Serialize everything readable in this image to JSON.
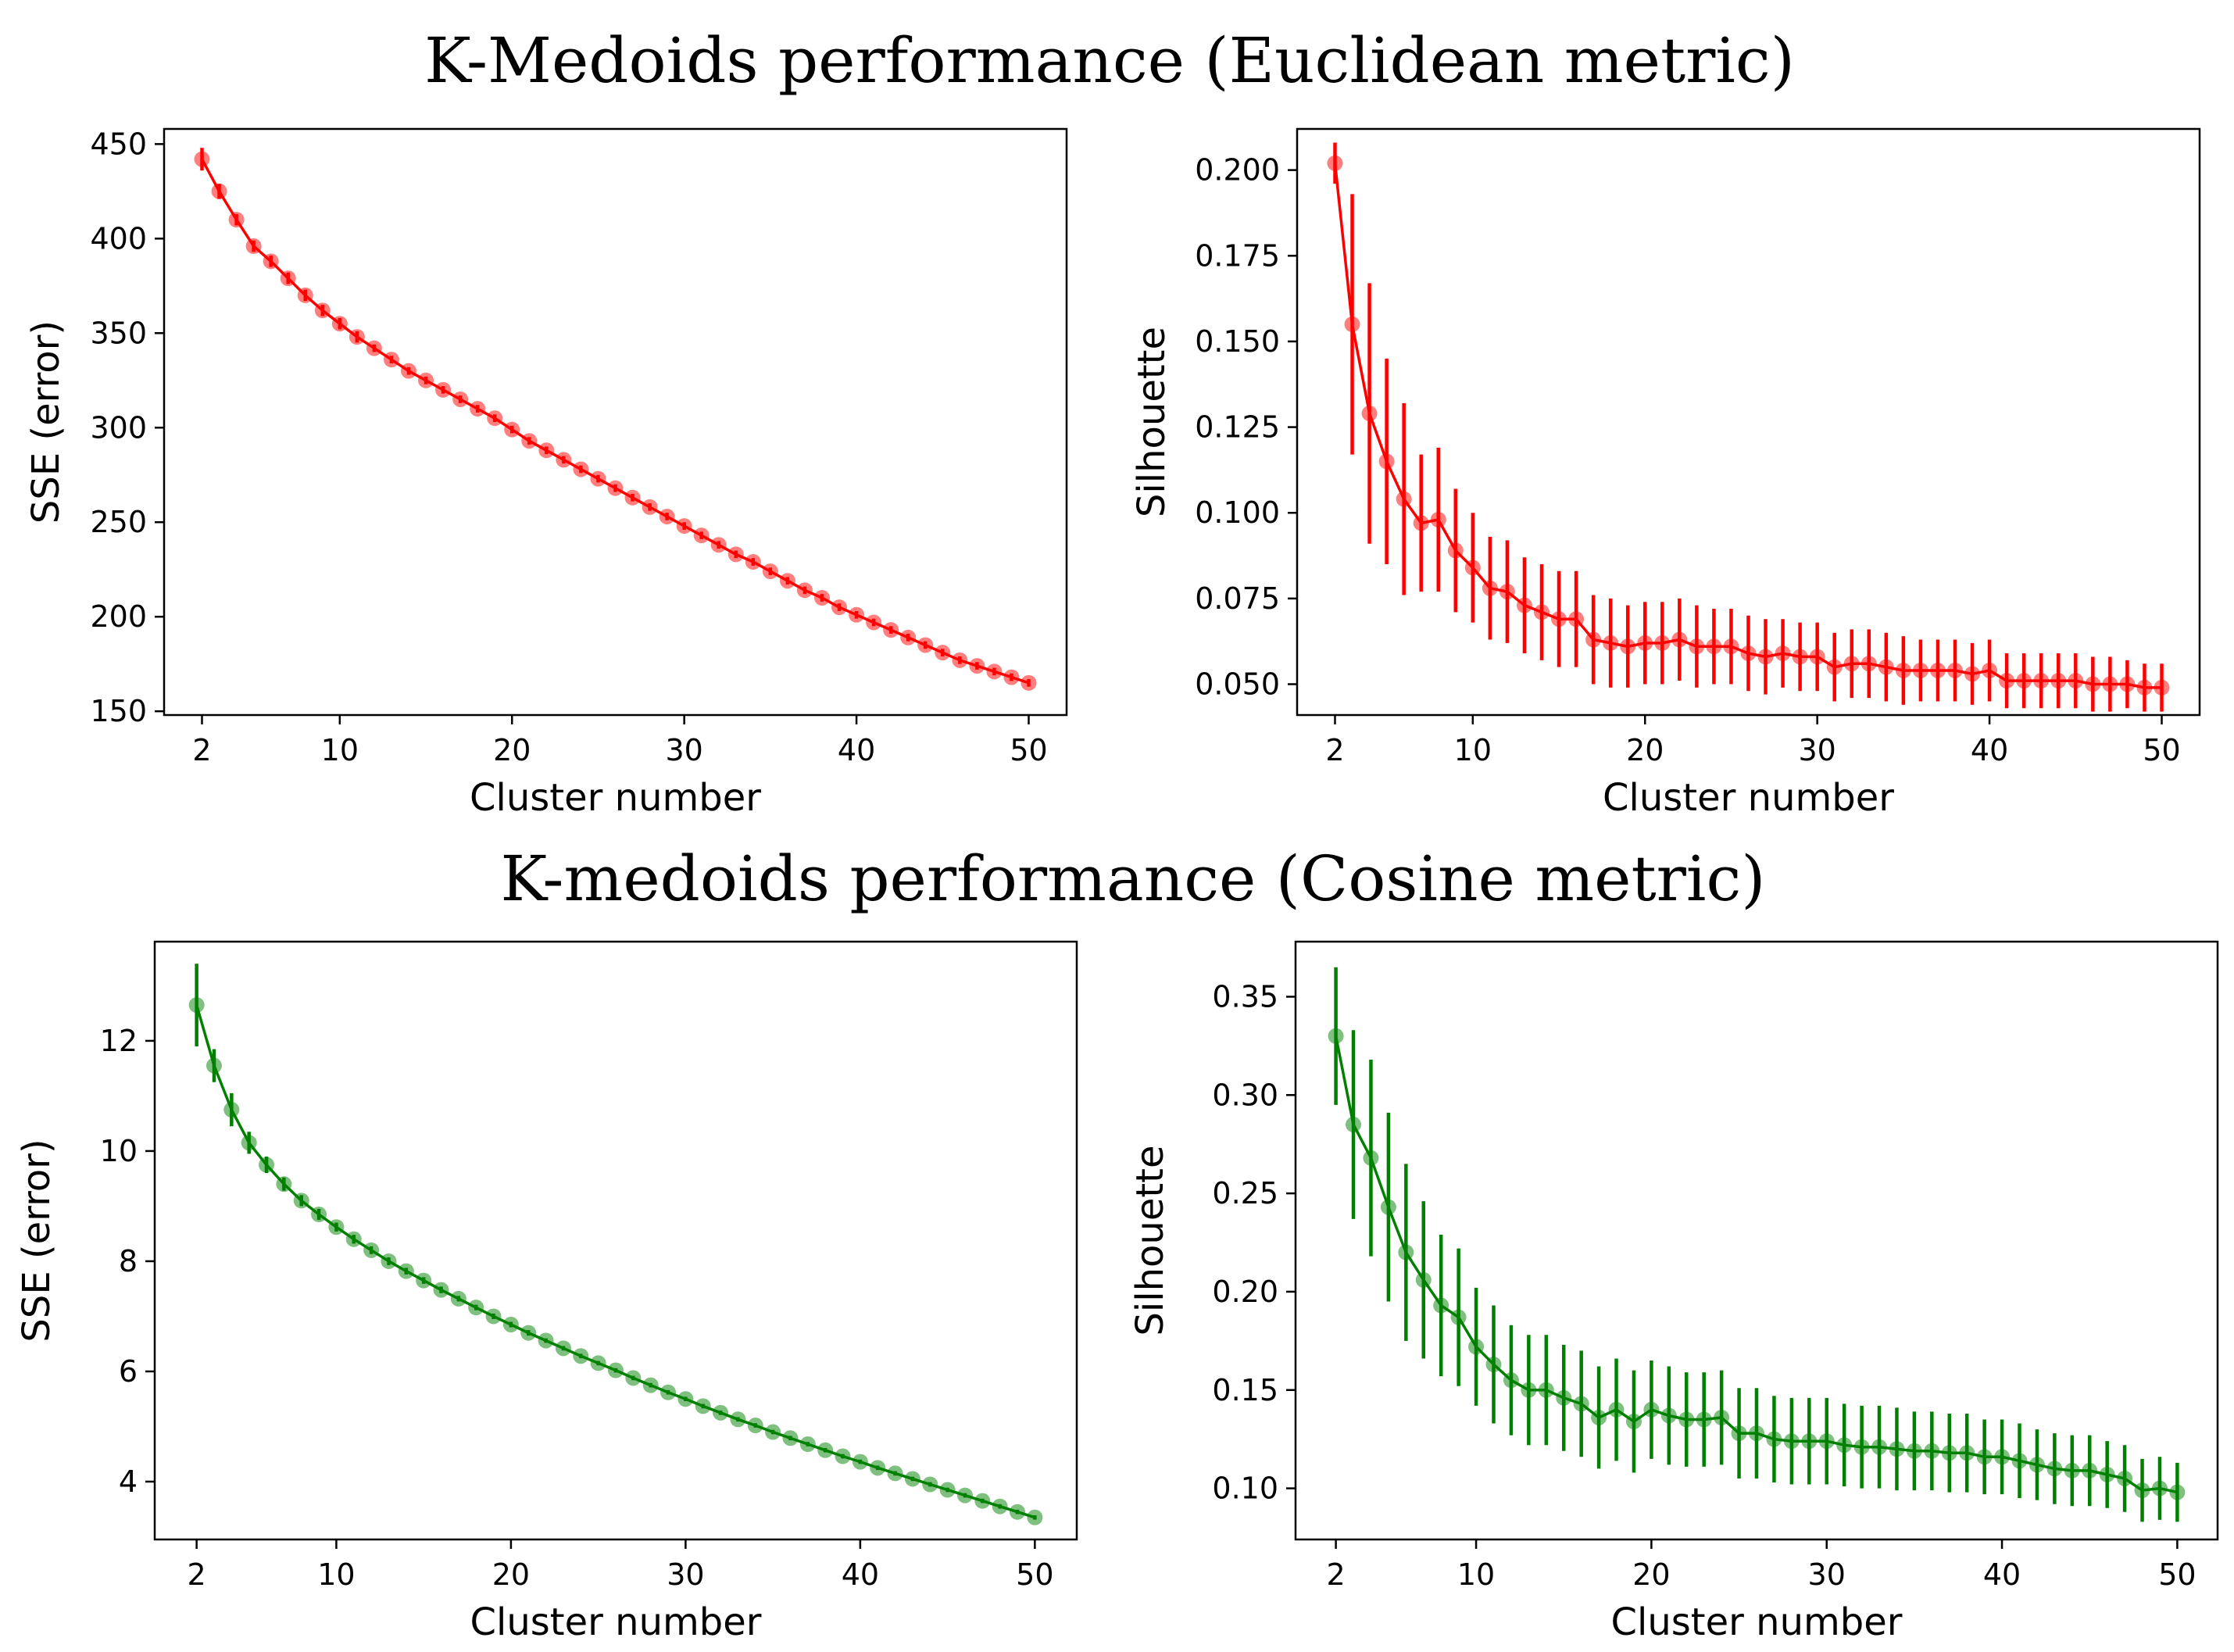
{
  "titles": {
    "euclidean": "K-Medoids performance (Euclidean metric)",
    "cosine": "K-medoids performance (Cosine metric)"
  },
  "chart_data": [
    {
      "id": "euc-sse",
      "type": "line",
      "title": "",
      "xlabel": "Cluster number",
      "ylabel": "SSE (error)",
      "xlim": [
        -0.2,
        52.2
      ],
      "ylim": [
        148,
        458
      ],
      "xticks": [
        2,
        10,
        20,
        30,
        40,
        50
      ],
      "yticks": [
        150,
        200,
        250,
        300,
        350,
        400,
        450
      ],
      "ytick_decimals": 0,
      "color": "#ff0000",
      "x": [
        2,
        3,
        4,
        5,
        6,
        7,
        8,
        9,
        10,
        11,
        12,
        13,
        14,
        15,
        16,
        17,
        18,
        19,
        20,
        21,
        22,
        23,
        24,
        25,
        26,
        27,
        28,
        29,
        30,
        31,
        32,
        33,
        34,
        35,
        36,
        37,
        38,
        39,
        40,
        41,
        42,
        43,
        44,
        45,
        46,
        47,
        48,
        49,
        50
      ],
      "y": [
        442,
        425,
        410,
        396,
        388,
        379,
        370,
        362,
        355,
        348,
        342,
        336,
        330,
        325,
        320,
        315,
        310,
        305,
        299,
        293,
        288,
        283,
        278,
        273,
        268,
        263,
        258,
        253,
        248,
        243,
        238,
        233,
        229,
        224,
        219,
        214,
        210,
        205,
        201,
        197,
        193,
        189,
        185,
        181,
        177,
        174,
        171,
        168,
        165
      ],
      "err": [
        6,
        4,
        3,
        3,
        3,
        3,
        3,
        3,
        3,
        3,
        2,
        2,
        2,
        2,
        2,
        2,
        2,
        2,
        2,
        2,
        2,
        2,
        2,
        2,
        2,
        2,
        2,
        2,
        2,
        2,
        2,
        2,
        2,
        2,
        2,
        2,
        2,
        2,
        2,
        2,
        2,
        2,
        2,
        2,
        2,
        2,
        2,
        2,
        2
      ]
    },
    {
      "id": "euc-sil",
      "type": "line",
      "title": "",
      "xlabel": "Cluster number",
      "ylabel": "Silhouette",
      "xlim": [
        -0.2,
        52.2
      ],
      "ylim": [
        0.041,
        0.212
      ],
      "xticks": [
        2,
        10,
        20,
        30,
        40,
        50
      ],
      "yticks": [
        0.05,
        0.075,
        0.1,
        0.125,
        0.15,
        0.175,
        0.2
      ],
      "ytick_decimals": 3,
      "color": "#ff0000",
      "x": [
        2,
        3,
        4,
        5,
        6,
        7,
        8,
        9,
        10,
        11,
        12,
        13,
        14,
        15,
        16,
        17,
        18,
        19,
        20,
        21,
        22,
        23,
        24,
        25,
        26,
        27,
        28,
        29,
        30,
        31,
        32,
        33,
        34,
        35,
        36,
        37,
        38,
        39,
        40,
        41,
        42,
        43,
        44,
        45,
        46,
        47,
        48,
        49,
        50
      ],
      "y": [
        0.202,
        0.155,
        0.129,
        0.115,
        0.104,
        0.097,
        0.098,
        0.089,
        0.084,
        0.078,
        0.077,
        0.073,
        0.071,
        0.069,
        0.069,
        0.063,
        0.062,
        0.061,
        0.062,
        0.062,
        0.063,
        0.061,
        0.061,
        0.061,
        0.059,
        0.058,
        0.059,
        0.058,
        0.058,
        0.055,
        0.056,
        0.056,
        0.055,
        0.054,
        0.054,
        0.054,
        0.054,
        0.053,
        0.054,
        0.051,
        0.051,
        0.051,
        0.051,
        0.051,
        0.05,
        0.05,
        0.05,
        0.049,
        0.049
      ],
      "err": [
        0.006,
        0.038,
        0.038,
        0.03,
        0.028,
        0.02,
        0.021,
        0.018,
        0.016,
        0.015,
        0.015,
        0.014,
        0.014,
        0.014,
        0.014,
        0.013,
        0.013,
        0.012,
        0.012,
        0.012,
        0.012,
        0.012,
        0.011,
        0.011,
        0.011,
        0.011,
        0.01,
        0.01,
        0.01,
        0.01,
        0.01,
        0.01,
        0.01,
        0.01,
        0.009,
        0.009,
        0.009,
        0.009,
        0.009,
        0.008,
        0.008,
        0.008,
        0.008,
        0.008,
        0.008,
        0.008,
        0.007,
        0.007,
        0.007
      ]
    },
    {
      "id": "cos-sse",
      "type": "line",
      "title": "",
      "xlabel": "Cluster number",
      "ylabel": "SSE (error)",
      "xlim": [
        -0.4,
        52.4
      ],
      "ylim": [
        2.95,
        13.8
      ],
      "xticks": [
        2,
        10,
        20,
        30,
        40,
        50
      ],
      "yticks": [
        4,
        6,
        8,
        10,
        12
      ],
      "ytick_decimals": 0,
      "color": "#008000",
      "x": [
        2,
        3,
        4,
        5,
        6,
        7,
        8,
        9,
        10,
        11,
        12,
        13,
        14,
        15,
        16,
        17,
        18,
        19,
        20,
        21,
        22,
        23,
        24,
        25,
        26,
        27,
        28,
        29,
        30,
        31,
        32,
        33,
        34,
        35,
        36,
        37,
        38,
        39,
        40,
        41,
        42,
        43,
        44,
        45,
        46,
        47,
        48,
        49,
        50
      ],
      "y": [
        12.65,
        11.55,
        10.75,
        10.15,
        9.75,
        9.4,
        9.1,
        8.85,
        8.62,
        8.4,
        8.2,
        8.0,
        7.82,
        7.65,
        7.48,
        7.32,
        7.16,
        7.0,
        6.85,
        6.7,
        6.56,
        6.42,
        6.28,
        6.15,
        6.02,
        5.88,
        5.75,
        5.62,
        5.5,
        5.37,
        5.25,
        5.13,
        5.02,
        4.9,
        4.79,
        4.68,
        4.57,
        4.46,
        4.36,
        4.25,
        4.15,
        4.05,
        3.95,
        3.85,
        3.75,
        3.65,
        3.55,
        3.45,
        3.35
      ],
      "err": [
        0.75,
        0.3,
        0.3,
        0.2,
        0.15,
        0.12,
        0.1,
        0.1,
        0.08,
        0.08,
        0.07,
        0.07,
        0.06,
        0.06,
        0.06,
        0.05,
        0.05,
        0.05,
        0.05,
        0.05,
        0.04,
        0.04,
        0.04,
        0.04,
        0.04,
        0.04,
        0.04,
        0.04,
        0.04,
        0.04,
        0.04,
        0.04,
        0.04,
        0.04,
        0.04,
        0.04,
        0.04,
        0.04,
        0.04,
        0.04,
        0.04,
        0.04,
        0.04,
        0.04,
        0.04,
        0.04,
        0.04,
        0.04,
        0.04
      ]
    },
    {
      "id": "cos-sil",
      "type": "line",
      "title": "",
      "xlabel": "Cluster number",
      "ylabel": "Silhouette",
      "xlim": [
        -0.3,
        52.3
      ],
      "ylim": [
        0.074,
        0.378
      ],
      "xticks": [
        2,
        10,
        20,
        30,
        40,
        50
      ],
      "yticks": [
        0.1,
        0.15,
        0.2,
        0.25,
        0.3,
        0.35
      ],
      "ytick_decimals": 2,
      "color": "#008000",
      "x": [
        2,
        3,
        4,
        5,
        6,
        7,
        8,
        9,
        10,
        11,
        12,
        13,
        14,
        15,
        16,
        17,
        18,
        19,
        20,
        21,
        22,
        23,
        24,
        25,
        26,
        27,
        28,
        29,
        30,
        31,
        32,
        33,
        34,
        35,
        36,
        37,
        38,
        39,
        40,
        41,
        42,
        43,
        44,
        45,
        46,
        47,
        48,
        49,
        50
      ],
      "y": [
        0.33,
        0.285,
        0.268,
        0.243,
        0.22,
        0.206,
        0.193,
        0.187,
        0.172,
        0.163,
        0.155,
        0.15,
        0.15,
        0.146,
        0.143,
        0.136,
        0.14,
        0.134,
        0.14,
        0.137,
        0.135,
        0.135,
        0.136,
        0.128,
        0.128,
        0.125,
        0.124,
        0.124,
        0.124,
        0.122,
        0.121,
        0.121,
        0.12,
        0.119,
        0.119,
        0.118,
        0.118,
        0.116,
        0.116,
        0.114,
        0.112,
        0.11,
        0.109,
        0.109,
        0.107,
        0.105,
        0.099,
        0.1,
        0.098
      ],
      "err": [
        0.035,
        0.048,
        0.05,
        0.048,
        0.045,
        0.04,
        0.036,
        0.035,
        0.03,
        0.03,
        0.028,
        0.028,
        0.028,
        0.027,
        0.027,
        0.026,
        0.026,
        0.026,
        0.025,
        0.025,
        0.024,
        0.024,
        0.024,
        0.023,
        0.023,
        0.022,
        0.022,
        0.022,
        0.022,
        0.021,
        0.021,
        0.021,
        0.021,
        0.02,
        0.02,
        0.02,
        0.02,
        0.019,
        0.019,
        0.019,
        0.018,
        0.018,
        0.018,
        0.018,
        0.017,
        0.017,
        0.016,
        0.016,
        0.015
      ]
    }
  ]
}
